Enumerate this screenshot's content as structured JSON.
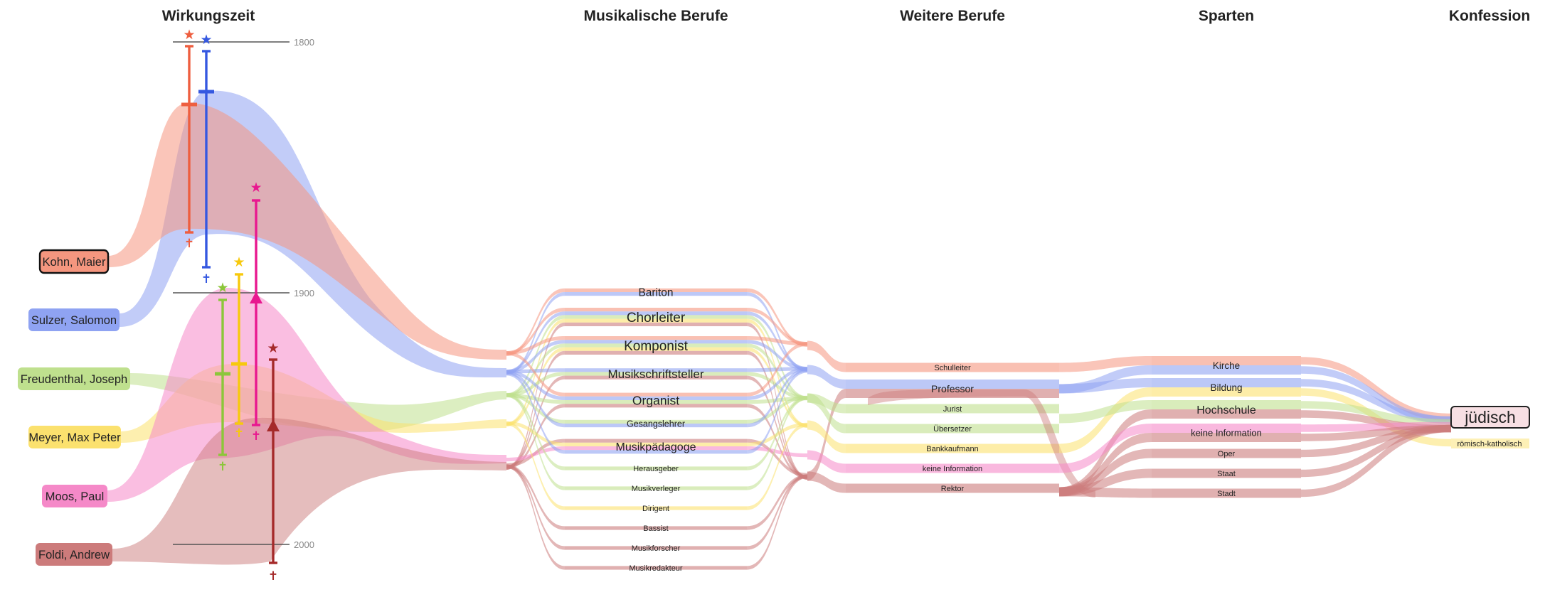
{
  "columns": {
    "wirkungszeit": "Wirkungszeit",
    "musikalische_berufe": "Musikalische Berufe",
    "weitere_berufe": "Weitere Berufe",
    "sparten": "Sparten",
    "konfession": "Konfession"
  },
  "timeline": {
    "ticks": [
      "1800",
      "1900",
      "2000"
    ]
  },
  "people": [
    {
      "id": "kohn",
      "name": "Kohn, Maier",
      "color": "#f5967f",
      "line_color": "#ee5e3f",
      "selected": true
    },
    {
      "id": "sulzer",
      "name": "Sulzer, Salomon",
      "color": "#8fa3f2",
      "line_color": "#3558e0",
      "selected": false
    },
    {
      "id": "freudenthal",
      "name": "Freudenthal, Joseph",
      "color": "#bfe08e",
      "line_color": "#8cc63a",
      "selected": false
    },
    {
      "id": "meyer",
      "name": "Meyer, Max Peter",
      "color": "#fbe16e",
      "line_color": "#f7c90d",
      "selected": false
    },
    {
      "id": "moos",
      "name": "Moos, Paul",
      "color": "#f589c8",
      "line_color": "#e8188f",
      "selected": false
    },
    {
      "id": "foldi",
      "name": "Foldi, Andrew",
      "color": "#cc7b7b",
      "line_color": "#a52a2a",
      "selected": false
    }
  ],
  "musical_professions": [
    "Bariton",
    "Chorleiter",
    "Komponist",
    "Musikschriftsteller",
    "Organist",
    "Gesangslehrer",
    "Musikpädagoge",
    "Herausgeber",
    "Musikverleger",
    "Dirigent",
    "Bassist",
    "Musikforscher",
    "Musikredakteur"
  ],
  "other_professions": [
    "Schulleiter",
    "Professor",
    "Jurist",
    "Übersetzer",
    "Bankkaufmann",
    "keine Information",
    "Rektor"
  ],
  "sparten": [
    "Kirche",
    "Bildung",
    "Hochschule",
    "keine Information",
    "Oper",
    "Staat",
    "Stadt"
  ],
  "konfession": {
    "selected": "jüdisch",
    "other": "römisch-katholisch"
  },
  "icons": {
    "birth": "star-icon",
    "death": "cross-icon",
    "ongoing": "triangle-up-icon"
  }
}
